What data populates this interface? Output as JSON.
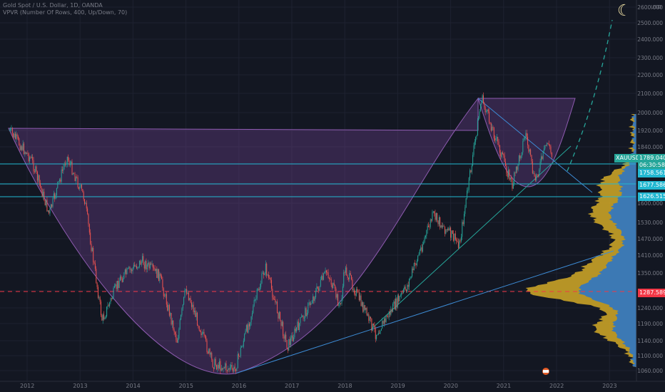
{
  "header": {
    "title": "Gold Spot / U.S. Dollar, 1D, OANDA",
    "indicator": "VPVR (Number Of Rows, 400, Up/Down, 70)"
  },
  "currency_badge": "USD",
  "price_label": {
    "symbol": "XAUUSD",
    "price": "1789.040",
    "countdown": "06:30:58"
  },
  "levels": [
    "1758.561",
    "1677.586",
    "1626.515",
    "1287.589"
  ],
  "colors": {
    "background": "#131722",
    "cup": "#6b3f8c",
    "level": "#22b8d1",
    "red_level": "#f23645",
    "vol_up": "#2f76c4",
    "vol_down": "#c9a227",
    "bull": "#26a69a",
    "bear": "#ef5350"
  },
  "chart_data": {
    "type": "candlestick",
    "x": [
      "2012",
      "2013",
      "2014",
      "2015",
      "2016",
      "2017",
      "2018",
      "2019",
      "2020",
      "2021",
      "2022",
      "2023"
    ],
    "yticks": [
      "2600.000",
      "2500.000",
      "2400.000",
      "2300.000",
      "2200.000",
      "2100.000",
      "2000.000",
      "1920.000",
      "1840.000",
      "1760.000",
      "1680.000",
      "1600.000",
      "1530.000",
      "1470.000",
      "1410.000",
      "1350.000",
      "1290.000",
      "1240.000",
      "1190.000",
      "1140.000",
      "1100.000",
      "1060.000"
    ],
    "ylim": [
      1040,
      2640
    ],
    "series": [
      {
        "values": [
          {
            "x": "2011-09",
            "y": 1920
          },
          {
            "x": "2012-02",
            "y": 1780
          },
          {
            "x": "2012-06",
            "y": 1560
          },
          {
            "x": "2012-10",
            "y": 1795
          },
          {
            "x": "2013-02",
            "y": 1620
          },
          {
            "x": "2013-06",
            "y": 1200
          },
          {
            "x": "2013-10",
            "y": 1330
          },
          {
            "x": "2014-03",
            "y": 1390
          },
          {
            "x": "2014-07",
            "y": 1340
          },
          {
            "x": "2014-11",
            "y": 1140
          },
          {
            "x": "2015-01",
            "y": 1300
          },
          {
            "x": "2015-07",
            "y": 1080
          },
          {
            "x": "2015-12",
            "y": 1046
          },
          {
            "x": "2016-07",
            "y": 1370
          },
          {
            "x": "2016-12",
            "y": 1125
          },
          {
            "x": "2017-09",
            "y": 1357
          },
          {
            "x": "2017-12",
            "y": 1240
          },
          {
            "x": "2018-01",
            "y": 1365
          },
          {
            "x": "2018-08",
            "y": 1160
          },
          {
            "x": "2019-03",
            "y": 1300
          },
          {
            "x": "2019-09",
            "y": 1557
          },
          {
            "x": "2020-03",
            "y": 1450
          },
          {
            "x": "2020-08",
            "y": 2075
          },
          {
            "x": "2021-03",
            "y": 1677
          },
          {
            "x": "2021-06",
            "y": 1910
          },
          {
            "x": "2021-08",
            "y": 1690
          },
          {
            "x": "2021-11",
            "y": 1870
          },
          {
            "x": "2021-12",
            "y": 1789
          }
        ]
      }
    ]
  }
}
